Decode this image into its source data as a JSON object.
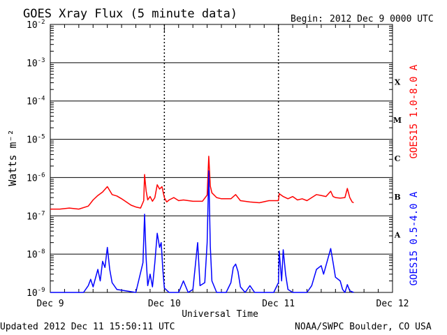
{
  "header": {
    "title": "GOES Xray Flux (5 minute data)",
    "begin_label": "Begin:",
    "begin_value": "2012 Dec 9 0000 UTC"
  },
  "footer": {
    "updated": "Updated 2012 Dec 11 15:50:11 UTC",
    "credit": "NOAA/SWPC Boulder, CO USA"
  },
  "chart_data": {
    "type": "line",
    "title": "GOES Xray Flux (5 minute data)",
    "xlabel": "Universal Time",
    "ylabel": "Watts m⁻²",
    "y_scale": "log",
    "ylim": [
      1e-09,
      0.01
    ],
    "xlim": [
      "2012-12-09T00:00",
      "2012-12-12T00:00"
    ],
    "x_ticks": [
      "Dec 9",
      "Dec 10",
      "Dec 11",
      "Dec 12"
    ],
    "y_ticks": [
      {
        "value": 1e-09,
        "base": "10",
        "exp": "-9"
      },
      {
        "value": 1e-08,
        "base": "10",
        "exp": "-8"
      },
      {
        "value": 1e-07,
        "base": "10",
        "exp": "-7"
      },
      {
        "value": 1e-06,
        "base": "10",
        "exp": "-6"
      },
      {
        "value": 1e-05,
        "base": "10",
        "exp": "-5"
      },
      {
        "value": 0.0001,
        "base": "10",
        "exp": "-4"
      },
      {
        "value": 0.001,
        "base": "10",
        "exp": "-3"
      },
      {
        "value": 0.01,
        "base": "10",
        "exp": "-2"
      }
    ],
    "flare_classes": [
      {
        "label": "A",
        "low": 1e-08,
        "high": 1e-07
      },
      {
        "label": "B",
        "low": 1e-07,
        "high": 1e-06
      },
      {
        "label": "C",
        "low": 1e-06,
        "high": 1e-05
      },
      {
        "label": "M",
        "low": 1e-05,
        "high": 0.0001
      },
      {
        "label": "X",
        "low": 0.0001,
        "high": 0.001
      }
    ],
    "grid": "horizontal solid at each decade; vertical dotted at day boundaries",
    "series": [
      {
        "name": "GOES15 1.0-8.0 A",
        "color": "#ff0000",
        "points": [
          [
            "2012-12-09T00:00",
            1.5e-07
          ],
          [
            "2012-12-09T02:00",
            1.5e-07
          ],
          [
            "2012-12-09T04:00",
            1.6e-07
          ],
          [
            "2012-12-09T06:00",
            1.5e-07
          ],
          [
            "2012-12-09T08:00",
            1.8e-07
          ],
          [
            "2012-12-09T09:00",
            2.6e-07
          ],
          [
            "2012-12-09T10:00",
            3.4e-07
          ],
          [
            "2012-12-09T11:00",
            4.2e-07
          ],
          [
            "2012-12-09T12:00",
            5.8e-07
          ],
          [
            "2012-12-09T13:00",
            3.6e-07
          ],
          [
            "2012-12-09T14:00",
            3.3e-07
          ],
          [
            "2012-12-09T15:00",
            2.8e-07
          ],
          [
            "2012-12-09T16:00",
            2.3e-07
          ],
          [
            "2012-12-09T17:00",
            1.9e-07
          ],
          [
            "2012-12-09T18:00",
            1.7e-07
          ],
          [
            "2012-12-09T19:00",
            1.6e-07
          ],
          [
            "2012-12-09T19:40",
            2.5e-07
          ],
          [
            "2012-12-09T19:50",
            1.2e-06
          ],
          [
            "2012-12-09T20:10",
            4.5e-07
          ],
          [
            "2012-12-09T20:30",
            2.6e-07
          ],
          [
            "2012-12-09T21:00",
            3.2e-07
          ],
          [
            "2012-12-09T21:30",
            2.4e-07
          ],
          [
            "2012-12-09T22:00",
            3e-07
          ],
          [
            "2012-12-09T22:30",
            6.5e-07
          ],
          [
            "2012-12-09T23:00",
            5e-07
          ],
          [
            "2012-12-09T23:30",
            5.8e-07
          ],
          [
            "2012-12-10T00:00",
            3e-07
          ],
          [
            "2012-12-10T00:30",
            2.3e-07
          ],
          [
            "2012-12-10T01:00",
            2.6e-07
          ],
          [
            "2012-12-10T02:00",
            3e-07
          ],
          [
            "2012-12-10T03:00",
            2.5e-07
          ],
          [
            "2012-12-10T04:00",
            2.6e-07
          ],
          [
            "2012-12-10T06:00",
            2.4e-07
          ],
          [
            "2012-12-10T08:00",
            2.4e-07
          ],
          [
            "2012-12-10T09:00",
            3.5e-07
          ],
          [
            "2012-12-10T09:20",
            3.6e-06
          ],
          [
            "2012-12-10T09:40",
            6e-07
          ],
          [
            "2012-12-10T10:00",
            4e-07
          ],
          [
            "2012-12-10T11:00",
            3e-07
          ],
          [
            "2012-12-10T12:00",
            2.8e-07
          ],
          [
            "2012-12-10T14:00",
            2.8e-07
          ],
          [
            "2012-12-10T15:00",
            3.6e-07
          ],
          [
            "2012-12-10T16:00",
            2.5e-07
          ],
          [
            "2012-12-10T18:00",
            2.3e-07
          ],
          [
            "2012-12-10T20:00",
            2.2e-07
          ],
          [
            "2012-12-10T22:00",
            2.5e-07
          ],
          [
            "2012-12-11T00:00",
            2.5e-07
          ],
          [
            "2012-12-11T00:10",
            3.8e-07
          ],
          [
            "2012-12-11T01:00",
            3.2e-07
          ],
          [
            "2012-12-11T02:00",
            2.8e-07
          ],
          [
            "2012-12-11T03:00",
            3.2e-07
          ],
          [
            "2012-12-11T04:00",
            2.6e-07
          ],
          [
            "2012-12-11T05:00",
            2.8e-07
          ],
          [
            "2012-12-11T06:00",
            2.5e-07
          ],
          [
            "2012-12-11T07:00",
            3e-07
          ],
          [
            "2012-12-11T08:00",
            3.6e-07
          ],
          [
            "2012-12-11T09:00",
            3.4e-07
          ],
          [
            "2012-12-11T10:00",
            3.2e-07
          ],
          [
            "2012-12-11T11:00",
            4.4e-07
          ],
          [
            "2012-12-11T11:30",
            3.2e-07
          ],
          [
            "2012-12-11T12:00",
            3e-07
          ],
          [
            "2012-12-11T13:00",
            2.9e-07
          ],
          [
            "2012-12-11T14:00",
            3e-07
          ],
          [
            "2012-12-11T14:30",
            5.2e-07
          ],
          [
            "2012-12-11T15:00",
            3e-07
          ],
          [
            "2012-12-11T15:30",
            2.3e-07
          ],
          [
            "2012-12-11T15:50",
            2.2e-07
          ]
        ]
      },
      {
        "name": "GOES15 0.5-4.0 A",
        "color": "#0000ff",
        "points": [
          [
            "2012-12-09T00:00",
            1e-09
          ],
          [
            "2012-12-09T07:00",
            1e-09
          ],
          [
            "2012-12-09T08:00",
            1.5e-09
          ],
          [
            "2012-12-09T08:30",
            2.2e-09
          ],
          [
            "2012-12-09T09:00",
            1.4e-09
          ],
          [
            "2012-12-09T10:00",
            4e-09
          ],
          [
            "2012-12-09T10:30",
            2e-09
          ],
          [
            "2012-12-09T11:00",
            6.5e-09
          ],
          [
            "2012-12-09T11:30",
            4.5e-09
          ],
          [
            "2012-12-09T12:00",
            1.5e-08
          ],
          [
            "2012-12-09T12:30",
            4e-09
          ],
          [
            "2012-12-09T13:00",
            1.8e-09
          ],
          [
            "2012-12-09T14:00",
            1.2e-09
          ],
          [
            "2012-12-09T18:00",
            1e-09
          ],
          [
            "2012-12-09T19:30",
            6e-09
          ],
          [
            "2012-12-09T19:50",
            1.1e-07
          ],
          [
            "2012-12-09T20:10",
            8e-09
          ],
          [
            "2012-12-09T20:30",
            1.5e-09
          ],
          [
            "2012-12-09T21:00",
            3e-09
          ],
          [
            "2012-12-09T21:30",
            1.4e-09
          ],
          [
            "2012-12-09T22:00",
            6e-09
          ],
          [
            "2012-12-09T22:30",
            3.5e-08
          ],
          [
            "2012-12-09T23:00",
            1.5e-08
          ],
          [
            "2012-12-09T23:20",
            2e-08
          ],
          [
            "2012-12-09T23:40",
            4e-09
          ],
          [
            "2012-12-10T00:00",
            1.3e-09
          ],
          [
            "2012-12-10T01:00",
            1e-09
          ],
          [
            "2012-12-10T03:00",
            1e-09
          ],
          [
            "2012-12-10T04:00",
            2e-09
          ],
          [
            "2012-12-10T05:00",
            1e-09
          ],
          [
            "2012-12-10T06:00",
            1.2e-09
          ],
          [
            "2012-12-10T07:00",
            2e-08
          ],
          [
            "2012-12-10T07:30",
            1.5e-09
          ],
          [
            "2012-12-10T08:30",
            1.8e-09
          ],
          [
            "2012-12-10T09:00",
            2e-08
          ],
          [
            "2012-12-10T09:20",
            1.5e-06
          ],
          [
            "2012-12-10T09:40",
            1.6e-08
          ],
          [
            "2012-12-10T10:00",
            2e-09
          ],
          [
            "2012-12-10T11:00",
            1e-09
          ],
          [
            "2012-12-10T13:00",
            1e-09
          ],
          [
            "2012-12-10T14:00",
            1.8e-09
          ],
          [
            "2012-12-10T14:30",
            4.5e-09
          ],
          [
            "2012-12-10T15:00",
            5.5e-09
          ],
          [
            "2012-12-10T15:30",
            3.5e-09
          ],
          [
            "2012-12-10T16:00",
            1.4e-09
          ],
          [
            "2012-12-10T17:00",
            1e-09
          ],
          [
            "2012-12-10T18:00",
            1.5e-09
          ],
          [
            "2012-12-10T19:00",
            1e-09
          ],
          [
            "2012-12-10T23:00",
            1e-09
          ],
          [
            "2012-12-11T00:00",
            1.8e-09
          ],
          [
            "2012-12-11T00:10",
            1.2e-08
          ],
          [
            "2012-12-11T00:40",
            2e-09
          ],
          [
            "2012-12-11T01:00",
            1.3e-08
          ],
          [
            "2012-12-11T01:30",
            3e-09
          ],
          [
            "2012-12-11T02:00",
            1.2e-09
          ],
          [
            "2012-12-11T03:00",
            1e-09
          ],
          [
            "2012-12-11T06:00",
            1e-09
          ],
          [
            "2012-12-11T07:00",
            1.5e-09
          ],
          [
            "2012-12-11T08:00",
            4e-09
          ],
          [
            "2012-12-11T09:00",
            5e-09
          ],
          [
            "2012-12-11T09:30",
            3e-09
          ],
          [
            "2012-12-11T10:00",
            5e-09
          ],
          [
            "2012-12-11T11:00",
            1.4e-08
          ],
          [
            "2012-12-11T11:30",
            6e-09
          ],
          [
            "2012-12-11T12:00",
            2.5e-09
          ],
          [
            "2012-12-11T13:00",
            2e-09
          ],
          [
            "2012-12-11T13:30",
            1.2e-09
          ],
          [
            "2012-12-11T14:00",
            1e-09
          ],
          [
            "2012-12-11T14:30",
            1.6e-09
          ],
          [
            "2012-12-11T15:00",
            1.1e-09
          ],
          [
            "2012-12-11T15:50",
            1e-09
          ]
        ]
      }
    ]
  }
}
